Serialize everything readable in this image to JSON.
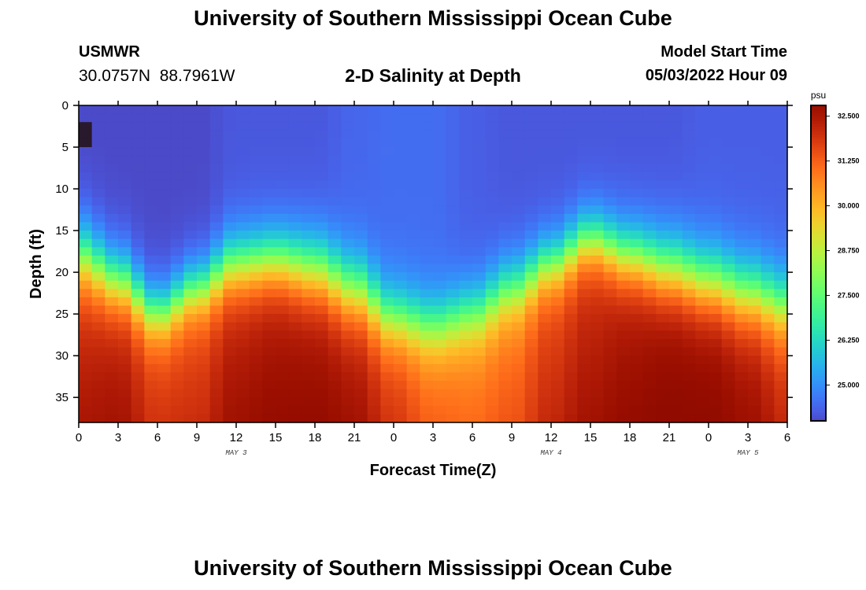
{
  "header": {
    "title": "University of Southern Mississippi Ocean Cube",
    "station": "USMWR",
    "coords": "30.0757N  88.7961W",
    "subtitle": "2-D Salinity at Depth",
    "model_start_label": "Model Start Time",
    "model_start_value": "05/03/2022 Hour 09"
  },
  "footer": {
    "title": "University of Southern Mississippi Ocean Cube"
  },
  "chart_data": {
    "type": "heatmap",
    "xlabel": "Forecast Time(Z)",
    "ylabel": "Depth (ft)",
    "x_tick_labels": [
      "0",
      "3",
      "6",
      "9",
      "12",
      "15",
      "18",
      "21",
      "0",
      "3",
      "6",
      "9",
      "12",
      "15",
      "18",
      "21",
      "0",
      "3",
      "6"
    ],
    "x_range_hours": [
      0,
      54
    ],
    "day_labels": [
      {
        "label": "MAY 3",
        "hour": 12
      },
      {
        "label": "MAY 4",
        "hour": 36
      },
      {
        "label": "MAY 5",
        "hour": 51
      }
    ],
    "y_ticks": [
      0,
      5,
      10,
      15,
      20,
      25,
      30,
      35
    ],
    "ylim": [
      0,
      38
    ],
    "y_inverted": true,
    "colorbar": {
      "unit": "psu",
      "min": 24.0,
      "max": 32.8,
      "tick_values": [
        32.5,
        31.25,
        30.0,
        28.75,
        27.5,
        26.25,
        25.0
      ],
      "tick_labels": [
        "32.500",
        "31.250",
        "30.000",
        "28.750",
        "27.500",
        "26.250",
        "25.000"
      ],
      "colormap": "turbo"
    },
    "profile": {
      "description_hours": [
        0,
        3,
        6,
        9,
        12,
        15,
        18,
        21,
        24,
        27,
        30,
        33,
        36,
        39,
        42,
        45,
        48,
        51,
        54
      ],
      "halocline_depth_ft": [
        18,
        21,
        25,
        22,
        19,
        18.5,
        19.5,
        22,
        25.5,
        26.5,
        25,
        22,
        19,
        16,
        18,
        19.5,
        21,
        22.5,
        24
      ],
      "halocline_thickness_ft": [
        11,
        10,
        9,
        9,
        10,
        10,
        11,
        11,
        10,
        10,
        10,
        10,
        9,
        9,
        10,
        11,
        11,
        11,
        11
      ],
      "surface_salinity_psu": [
        24.0,
        24.0,
        24.0,
        24.0,
        24.2,
        24.2,
        24.2,
        24.4,
        24.5,
        24.5,
        24.3,
        24.2,
        24.2,
        24.2,
        24.2,
        24.2,
        24.3,
        24.3,
        24.3
      ],
      "bottom_salinity_psu": [
        32.0,
        32.2,
        31.6,
        31.6,
        32.2,
        32.4,
        32.5,
        32.3,
        31.6,
        31.0,
        30.8,
        31.0,
        31.6,
        32.0,
        32.4,
        32.7,
        32.7,
        32.4,
        31.8
      ]
    },
    "notes_visible": "Fresh water (blue) near surface, saline water (red) at depth"
  }
}
